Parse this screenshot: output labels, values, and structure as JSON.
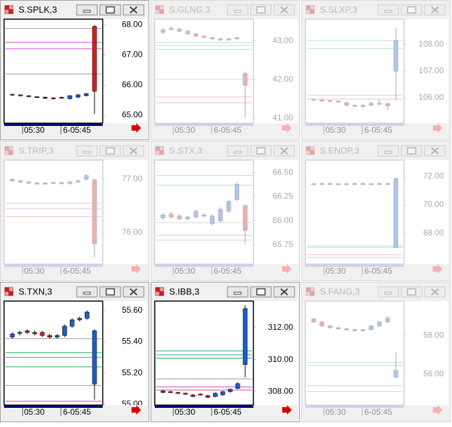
{
  "up_color": "#1a5fd0",
  "down_color": "#d42020",
  "panels": [
    {
      "title": "S.SPLK,3",
      "active": true,
      "ylim": [
        64.74,
        68.19
      ],
      "yticks": [
        {
          "value": 65,
          "label": "65.00"
        },
        {
          "value": 66,
          "label": "66.00"
        },
        {
          "value": 67,
          "label": "67.00"
        },
        {
          "value": 68,
          "label": "68.00"
        }
      ],
      "x_labels": [
        "05:30",
        "6-05:45"
      ],
      "candles": {
        "open": [
          65.67,
          65.68,
          65.65,
          65.62,
          65.6,
          65.58,
          65.6,
          65.55,
          65.6,
          65.65,
          67.95
        ],
        "high": [
          65.72,
          65.7,
          65.67,
          65.64,
          65.62,
          65.6,
          65.62,
          65.67,
          65.7,
          65.74,
          68.0
        ],
        "low": [
          65.65,
          65.63,
          65.6,
          65.58,
          65.58,
          65.53,
          65.56,
          65.53,
          65.58,
          65.63,
          65.05
        ],
        "close": [
          65.7,
          65.65,
          65.62,
          65.6,
          65.6,
          65.55,
          65.58,
          65.65,
          65.68,
          65.72,
          65.8
        ]
      },
      "levels": [
        {
          "value": 67.88,
          "color": "#999999"
        },
        {
          "value": 67.42,
          "color": "#cc44cc"
        },
        {
          "value": 67.21,
          "color": "#cc44cc"
        },
        {
          "value": 66.37,
          "color": "#999999"
        }
      ]
    },
    {
      "title": "S.GLNG,3",
      "active": false,
      "ylim": [
        40.87,
        43.56
      ],
      "yticks": [
        {
          "value": 41,
          "label": "41.00"
        },
        {
          "value": 42,
          "label": "42.00"
        },
        {
          "value": 43,
          "label": "43.00"
        }
      ],
      "x_labels": [
        "05:30",
        "6-05:45"
      ],
      "candles": {
        "open": [
          43.28,
          43.32,
          43.3,
          43.25,
          43.18,
          43.12,
          43.08,
          43.05,
          43.02,
          43.05,
          42.15
        ],
        "high": [
          43.32,
          43.36,
          43.34,
          43.28,
          43.2,
          43.15,
          43.1,
          43.08,
          43.08,
          43.1,
          42.2
        ],
        "low": [
          43.18,
          43.28,
          43.22,
          43.15,
          43.1,
          43.07,
          43.02,
          43.0,
          43.0,
          43.02,
          41.02
        ],
        "close": [
          43.22,
          43.3,
          43.25,
          43.18,
          43.12,
          43.1,
          43.05,
          43.02,
          43.05,
          43.08,
          41.85
        ]
      },
      "levels": [
        {
          "value": 42.95,
          "color": "#22aa55"
        },
        {
          "value": 42.88,
          "color": "#22aaaa"
        },
        {
          "value": 42.78,
          "color": "#22aa55"
        },
        {
          "value": 42.0,
          "color": "#999999"
        },
        {
          "value": 41.55,
          "color": "#dd4477"
        },
        {
          "value": 41.4,
          "color": "#dd4477"
        }
      ]
    },
    {
      "title": "S.SLXP,3",
      "active": false,
      "ylim": [
        105.05,
        108.95
      ],
      "yticks": [
        {
          "value": 106,
          "label": "106.00"
        },
        {
          "value": 107,
          "label": "107.00"
        },
        {
          "value": 108,
          "label": "108.00"
        }
      ],
      "x_labels": [
        "05:30",
        "6-05:45"
      ],
      "candles": {
        "open": [
          105.95,
          105.92,
          105.9,
          105.88,
          105.82,
          105.72,
          105.7,
          105.72,
          105.8,
          105.78,
          107.0
        ],
        "high": [
          105.98,
          105.95,
          105.93,
          105.9,
          105.85,
          105.75,
          105.76,
          105.84,
          105.95,
          105.82,
          108.63
        ],
        "low": [
          105.9,
          105.87,
          105.85,
          105.82,
          105.7,
          105.66,
          105.62,
          105.68,
          105.72,
          105.55,
          105.9
        ],
        "close": [
          105.92,
          105.9,
          105.88,
          105.85,
          105.72,
          105.7,
          105.72,
          105.8,
          105.78,
          105.7,
          108.15
        ]
      },
      "levels": [
        {
          "value": 108.15,
          "color": "#22aaaa"
        },
        {
          "value": 107.85,
          "color": "#22aa55"
        },
        {
          "value": 106.1,
          "color": "#dd4477"
        },
        {
          "value": 105.95,
          "color": "#cc44cc"
        }
      ]
    },
    {
      "title": "S.TRIP,3",
      "active": false,
      "ylim": [
        75.41,
        77.36
      ],
      "yticks": [
        {
          "value": 76,
          "label": "76.00"
        },
        {
          "value": 77,
          "label": "77.00"
        }
      ],
      "x_labels": [
        "05:30",
        "6-05:45"
      ],
      "candles": {
        "open": [
          77.0,
          76.97,
          76.95,
          76.93,
          76.92,
          76.93,
          76.94,
          76.92,
          76.95,
          77.0,
          76.99
        ],
        "high": [
          77.02,
          77.0,
          76.97,
          76.95,
          76.95,
          76.96,
          76.96,
          76.97,
          77.0,
          77.1,
          77.0
        ],
        "low": [
          76.95,
          76.93,
          76.91,
          76.9,
          76.9,
          76.91,
          76.9,
          76.9,
          76.93,
          76.98,
          75.53
        ],
        "close": [
          76.97,
          76.95,
          76.93,
          76.92,
          76.93,
          76.94,
          76.92,
          76.95,
          76.97,
          77.07,
          75.79
        ]
      },
      "levels": [
        {
          "value": 76.55,
          "color": "#dd4477"
        },
        {
          "value": 76.45,
          "color": "#cc44cc"
        },
        {
          "value": 76.3,
          "color": "#dd4477"
        }
      ]
    },
    {
      "title": "S.STX,3",
      "active": false,
      "ylim": [
        65.55,
        66.63
      ],
      "yticks": [
        {
          "value": 65.75,
          "label": "65.75"
        },
        {
          "value": 66,
          "label": "66.00"
        },
        {
          "value": 66.25,
          "label": "66.25"
        },
        {
          "value": 66.5,
          "label": "66.50"
        }
      ],
      "x_labels": [
        "05:30",
        "6-05:45"
      ],
      "candles": {
        "open": [
          66.03,
          66.07,
          66.05,
          66.02,
          66.04,
          66.06,
          65.97,
          66.0,
          66.1,
          66.22,
          66.16
        ],
        "high": [
          66.08,
          66.09,
          66.07,
          66.05,
          66.12,
          66.08,
          66.07,
          66.14,
          66.22,
          66.4,
          66.17
        ],
        "low": [
          66.01,
          66.02,
          66.0,
          66.0,
          66.02,
          66.03,
          65.95,
          65.98,
          66.08,
          66.2,
          65.76
        ],
        "close": [
          66.06,
          66.04,
          66.02,
          66.04,
          66.1,
          66.05,
          66.05,
          66.12,
          66.2,
          66.38,
          65.9
        ]
      },
      "levels": [
        {
          "value": 66.47,
          "color": "#22aaaa"
        },
        {
          "value": 66.37,
          "color": "#22aa55"
        },
        {
          "value": 65.98,
          "color": "#999999"
        },
        {
          "value": 65.85,
          "color": "#dd4477"
        },
        {
          "value": 65.8,
          "color": "#cc44cc"
        }
      ]
    },
    {
      "title": "S.ENDP,3",
      "active": false,
      "ylim": [
        65.83,
        73.14
      ],
      "yticks": [
        {
          "value": 68,
          "label": "68.00"
        },
        {
          "value": 70,
          "label": "70.00"
        },
        {
          "value": 72,
          "label": "72.00"
        }
      ],
      "x_labels": [
        "05:30",
        "6-05:45"
      ],
      "candles": {
        "open": [
          71.45,
          71.48,
          71.5,
          71.45,
          71.48,
          71.46,
          71.5,
          71.47,
          71.46,
          71.48,
          67.0
        ],
        "high": [
          71.52,
          71.55,
          71.55,
          71.52,
          71.52,
          71.55,
          71.55,
          71.52,
          71.55,
          71.55,
          71.9
        ],
        "low": [
          71.4,
          71.43,
          71.42,
          71.4,
          71.4,
          71.42,
          71.43,
          71.42,
          71.42,
          71.44,
          66.95
        ],
        "close": [
          71.48,
          71.5,
          71.46,
          71.48,
          71.45,
          71.5,
          71.47,
          71.48,
          71.5,
          71.5,
          71.85
        ]
      },
      "levels": [
        {
          "value": 67.1,
          "color": "#22aa55"
        },
        {
          "value": 67.0,
          "color": "#22aaaa"
        },
        {
          "value": 66.5,
          "color": "#dd4477"
        },
        {
          "value": 66.3,
          "color": "#cc44cc"
        }
      ]
    },
    {
      "title": "S.TXN,3",
      "active": true,
      "ylim": [
        54.995,
        55.66
      ],
      "yticks": [
        {
          "value": 55,
          "label": "55.00"
        },
        {
          "value": 55.2,
          "label": "55.20"
        },
        {
          "value": 55.4,
          "label": "55.40"
        },
        {
          "value": 55.6,
          "label": "55.60"
        }
      ],
      "x_labels": [
        "05:30",
        "6-05:45"
      ],
      "candles": {
        "open": [
          55.43,
          55.455,
          55.47,
          55.46,
          55.46,
          55.44,
          55.43,
          55.44,
          55.5,
          55.54,
          55.55,
          55.13
        ],
        "high": [
          55.46,
          55.47,
          55.48,
          55.47,
          55.47,
          55.45,
          55.45,
          55.51,
          55.55,
          55.56,
          55.6,
          55.48
        ],
        "low": [
          55.42,
          55.44,
          55.45,
          55.44,
          55.43,
          55.42,
          55.42,
          55.43,
          55.49,
          55.53,
          55.54,
          55.03
        ],
        "close": [
          55.45,
          55.46,
          55.46,
          55.45,
          55.44,
          55.43,
          55.44,
          55.5,
          55.54,
          55.55,
          55.59,
          55.47
        ]
      },
      "levels": [
        {
          "value": 55.42,
          "color": "#999999"
        },
        {
          "value": 55.33,
          "color": "#22aa55"
        },
        {
          "value": 55.3,
          "color": "#22aaaa"
        },
        {
          "value": 55.24,
          "color": "#22aa55"
        },
        {
          "value": 55.12,
          "color": "#999999"
        },
        {
          "value": 55.02,
          "color": "#cc44cc"
        }
      ]
    },
    {
      "title": "S.IBB,3",
      "active": true,
      "ylim": [
        307.16,
        313.67
      ],
      "yticks": [
        {
          "value": 308,
          "label": "308.00"
        },
        {
          "value": 310,
          "label": "310.00"
        },
        {
          "value": 312,
          "label": "312.00"
        }
      ],
      "x_labels": [
        "05:30",
        "6-05:45"
      ],
      "candles": {
        "open": [
          307.95,
          308.0,
          307.95,
          307.9,
          307.8,
          307.85,
          307.75,
          307.7,
          307.8,
          308.0,
          308.2,
          309.7
        ],
        "high": [
          308.1,
          308.05,
          308.0,
          307.95,
          307.85,
          307.9,
          307.8,
          307.95,
          308.05,
          308.2,
          308.6,
          313.4
        ],
        "low": [
          307.9,
          307.95,
          307.85,
          307.8,
          307.65,
          307.75,
          307.6,
          307.65,
          307.75,
          307.95,
          308.15,
          308.9
        ],
        "close": [
          308.05,
          307.98,
          307.9,
          307.85,
          307.7,
          307.8,
          307.65,
          307.9,
          308.0,
          308.15,
          308.5,
          313.2
        ]
      },
      "levels": [
        {
          "value": 310.55,
          "color": "#22aa55"
        },
        {
          "value": 310.3,
          "color": "#22aaaa"
        },
        {
          "value": 310.1,
          "color": "#22aa55"
        },
        {
          "value": 308.8,
          "color": "#999999"
        },
        {
          "value": 308.3,
          "color": "#cc44cc"
        },
        {
          "value": 308.1,
          "color": "#dd4477"
        }
      ]
    },
    {
      "title": "S.FANG,3",
      "active": false,
      "ylim": [
        54.4,
        59.78
      ],
      "yticks": [
        {
          "value": 56,
          "label": "56.00"
        },
        {
          "value": 58,
          "label": "58.00"
        }
      ],
      "x_labels": [
        "05:30",
        "6-05:45"
      ],
      "candles": {
        "open": [
          58.85,
          58.7,
          58.5,
          58.4,
          58.35,
          58.3,
          58.25,
          58.3,
          58.5,
          58.7,
          55.85
        ],
        "high": [
          58.95,
          58.75,
          58.55,
          58.45,
          58.4,
          58.35,
          58.35,
          58.55,
          58.75,
          59.0,
          57.13
        ],
        "low": [
          58.65,
          58.45,
          58.35,
          58.3,
          58.25,
          58.2,
          58.2,
          58.25,
          58.45,
          58.65,
          55.8
        ],
        "close": [
          58.7,
          58.5,
          58.4,
          58.35,
          58.3,
          58.25,
          58.3,
          58.5,
          58.7,
          58.9,
          56.2
        ]
      },
      "levels": [
        {
          "value": 56.6,
          "color": "#22aa55"
        },
        {
          "value": 56.45,
          "color": "#22aaaa"
        },
        {
          "value": 55.4,
          "color": "#dd4477"
        },
        {
          "value": 55.1,
          "color": "#cc44cc"
        }
      ]
    }
  ]
}
